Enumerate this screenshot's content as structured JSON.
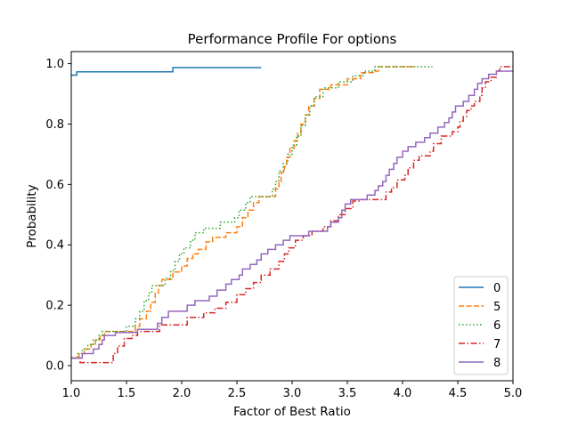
{
  "chart_data": {
    "type": "line",
    "title": "Performance Profile For options",
    "xlabel": "Factor of Best Ratio",
    "ylabel": "Probability",
    "xlim": [
      1.0,
      5.0
    ],
    "ylim": [
      -0.05,
      1.04
    ],
    "x_ticks": [
      "1.0",
      "1.5",
      "2.0",
      "2.5",
      "3.0",
      "3.5",
      "4.0",
      "4.5",
      "5.0"
    ],
    "x_tick_values": [
      1.0,
      1.5,
      2.0,
      2.5,
      3.0,
      3.5,
      4.0,
      4.5,
      5.0
    ],
    "y_ticks": [
      "0.0",
      "0.2",
      "0.4",
      "0.6",
      "0.8",
      "1.0"
    ],
    "y_tick_values": [
      0.0,
      0.2,
      0.4,
      0.6,
      0.8,
      1.0
    ],
    "grid": false,
    "legend_position": "lower-right",
    "step": "post",
    "series": [
      {
        "name": "0",
        "color": "#1f77b4",
        "dash": "solid",
        "points": [
          [
            1.0,
            0.962
          ],
          [
            1.05,
            0.973
          ],
          [
            1.1,
            0.973
          ],
          [
            1.9,
            0.973
          ],
          [
            1.92,
            0.987
          ],
          [
            2.72,
            0.987
          ]
        ]
      },
      {
        "name": "5",
        "color": "#ff7f0e",
        "dash": "dashed",
        "points": [
          [
            1.0,
            0.025
          ],
          [
            1.07,
            0.04
          ],
          [
            1.12,
            0.055
          ],
          [
            1.18,
            0.07
          ],
          [
            1.22,
            0.085
          ],
          [
            1.26,
            0.1
          ],
          [
            1.3,
            0.113
          ],
          [
            1.58,
            0.13
          ],
          [
            1.62,
            0.155
          ],
          [
            1.68,
            0.18
          ],
          [
            1.72,
            0.21
          ],
          [
            1.76,
            0.24
          ],
          [
            1.79,
            0.265
          ],
          [
            1.82,
            0.285
          ],
          [
            1.92,
            0.31
          ],
          [
            2.0,
            0.33
          ],
          [
            2.05,
            0.355
          ],
          [
            2.1,
            0.37
          ],
          [
            2.15,
            0.385
          ],
          [
            2.22,
            0.41
          ],
          [
            2.28,
            0.425
          ],
          [
            2.4,
            0.44
          ],
          [
            2.5,
            0.46
          ],
          [
            2.55,
            0.49
          ],
          [
            2.6,
            0.515
          ],
          [
            2.65,
            0.54
          ],
          [
            2.7,
            0.56
          ],
          [
            2.85,
            0.585
          ],
          [
            2.88,
            0.61
          ],
          [
            2.9,
            0.64
          ],
          [
            2.93,
            0.66
          ],
          [
            2.95,
            0.69
          ],
          [
            2.98,
            0.72
          ],
          [
            3.02,
            0.745
          ],
          [
            3.05,
            0.77
          ],
          [
            3.08,
            0.8
          ],
          [
            3.12,
            0.83
          ],
          [
            3.15,
            0.86
          ],
          [
            3.2,
            0.885
          ],
          [
            3.25,
            0.915
          ],
          [
            3.35,
            0.93
          ],
          [
            3.5,
            0.95
          ],
          [
            3.62,
            0.97
          ],
          [
            3.75,
            0.975
          ],
          [
            3.78,
            0.99
          ],
          [
            4.12,
            0.99
          ]
        ]
      },
      {
        "name": "6",
        "color": "#2ca02c",
        "dash": "dotted",
        "points": [
          [
            1.0,
            0.025
          ],
          [
            1.06,
            0.04
          ],
          [
            1.1,
            0.055
          ],
          [
            1.15,
            0.07
          ],
          [
            1.2,
            0.085
          ],
          [
            1.25,
            0.1
          ],
          [
            1.28,
            0.113
          ],
          [
            1.5,
            0.13
          ],
          [
            1.58,
            0.155
          ],
          [
            1.62,
            0.18
          ],
          [
            1.66,
            0.215
          ],
          [
            1.7,
            0.24
          ],
          [
            1.73,
            0.265
          ],
          [
            1.85,
            0.29
          ],
          [
            1.9,
            0.315
          ],
          [
            1.94,
            0.345
          ],
          [
            1.98,
            0.37
          ],
          [
            2.02,
            0.39
          ],
          [
            2.08,
            0.415
          ],
          [
            2.12,
            0.44
          ],
          [
            2.2,
            0.455
          ],
          [
            2.35,
            0.475
          ],
          [
            2.48,
            0.49
          ],
          [
            2.52,
            0.515
          ],
          [
            2.58,
            0.54
          ],
          [
            2.62,
            0.56
          ],
          [
            2.82,
            0.585
          ],
          [
            2.85,
            0.61
          ],
          [
            2.88,
            0.645
          ],
          [
            2.92,
            0.67
          ],
          [
            2.96,
            0.7
          ],
          [
            3.0,
            0.73
          ],
          [
            3.04,
            0.76
          ],
          [
            3.08,
            0.795
          ],
          [
            3.12,
            0.83
          ],
          [
            3.16,
            0.86
          ],
          [
            3.2,
            0.89
          ],
          [
            3.28,
            0.92
          ],
          [
            3.42,
            0.94
          ],
          [
            3.55,
            0.96
          ],
          [
            3.65,
            0.975
          ],
          [
            3.7,
            0.975
          ],
          [
            3.75,
            0.99
          ],
          [
            4.27,
            0.99
          ]
        ]
      },
      {
        "name": "7",
        "color": "#d62728",
        "dash": "dashdot",
        "points": [
          [
            1.0,
            0.025
          ],
          [
            1.08,
            0.01
          ],
          [
            1.35,
            0.01
          ],
          [
            1.38,
            0.04
          ],
          [
            1.42,
            0.065
          ],
          [
            1.48,
            0.09
          ],
          [
            1.55,
            0.1
          ],
          [
            1.6,
            0.113
          ],
          [
            1.78,
            0.113
          ],
          [
            1.8,
            0.135
          ],
          [
            2.02,
            0.135
          ],
          [
            2.05,
            0.16
          ],
          [
            2.2,
            0.175
          ],
          [
            2.3,
            0.19
          ],
          [
            2.4,
            0.21
          ],
          [
            2.5,
            0.235
          ],
          [
            2.58,
            0.255
          ],
          [
            2.65,
            0.275
          ],
          [
            2.72,
            0.3
          ],
          [
            2.8,
            0.32
          ],
          [
            2.88,
            0.345
          ],
          [
            2.93,
            0.37
          ],
          [
            2.97,
            0.39
          ],
          [
            3.03,
            0.415
          ],
          [
            3.1,
            0.43
          ],
          [
            3.18,
            0.445
          ],
          [
            3.28,
            0.46
          ],
          [
            3.35,
            0.48
          ],
          [
            3.42,
            0.5
          ],
          [
            3.48,
            0.52
          ],
          [
            3.55,
            0.545
          ],
          [
            3.62,
            0.55
          ],
          [
            3.82,
            0.55
          ],
          [
            3.85,
            0.575
          ],
          [
            3.9,
            0.59
          ],
          [
            3.95,
            0.615
          ],
          [
            4.02,
            0.63
          ],
          [
            4.05,
            0.655
          ],
          [
            4.1,
            0.68
          ],
          [
            4.15,
            0.695
          ],
          [
            4.25,
            0.71
          ],
          [
            4.28,
            0.735
          ],
          [
            4.35,
            0.76
          ],
          [
            4.45,
            0.775
          ],
          [
            4.5,
            0.79
          ],
          [
            4.52,
            0.81
          ],
          [
            4.55,
            0.825
          ],
          [
            4.58,
            0.845
          ],
          [
            4.62,
            0.86
          ],
          [
            4.65,
            0.875
          ],
          [
            4.7,
            0.895
          ],
          [
            4.72,
            0.92
          ],
          [
            4.75,
            0.94
          ],
          [
            4.8,
            0.955
          ],
          [
            4.85,
            0.975
          ],
          [
            4.88,
            0.99
          ],
          [
            5.0,
            0.99
          ]
        ]
      },
      {
        "name": "8",
        "color": "#9467bd",
        "dash": "solid",
        "points": [
          [
            1.0,
            0.025
          ],
          [
            1.1,
            0.04
          ],
          [
            1.2,
            0.055
          ],
          [
            1.25,
            0.07
          ],
          [
            1.28,
            0.085
          ],
          [
            1.3,
            0.1
          ],
          [
            1.4,
            0.11
          ],
          [
            1.6,
            0.12
          ],
          [
            1.78,
            0.14
          ],
          [
            1.82,
            0.16
          ],
          [
            1.88,
            0.18
          ],
          [
            2.05,
            0.2
          ],
          [
            2.12,
            0.215
          ],
          [
            2.25,
            0.23
          ],
          [
            2.32,
            0.25
          ],
          [
            2.4,
            0.27
          ],
          [
            2.45,
            0.285
          ],
          [
            2.52,
            0.3
          ],
          [
            2.55,
            0.32
          ],
          [
            2.62,
            0.335
          ],
          [
            2.68,
            0.35
          ],
          [
            2.72,
            0.37
          ],
          [
            2.78,
            0.385
          ],
          [
            2.85,
            0.4
          ],
          [
            2.92,
            0.415
          ],
          [
            2.98,
            0.43
          ],
          [
            3.12,
            0.43
          ],
          [
            3.15,
            0.445
          ],
          [
            3.3,
            0.445
          ],
          [
            3.32,
            0.46
          ],
          [
            3.35,
            0.475
          ],
          [
            3.42,
            0.49
          ],
          [
            3.45,
            0.515
          ],
          [
            3.48,
            0.535
          ],
          [
            3.53,
            0.55
          ],
          [
            3.68,
            0.565
          ],
          [
            3.75,
            0.58
          ],
          [
            3.78,
            0.595
          ],
          [
            3.82,
            0.61
          ],
          [
            3.85,
            0.63
          ],
          [
            3.88,
            0.65
          ],
          [
            3.92,
            0.67
          ],
          [
            3.95,
            0.69
          ],
          [
            4.0,
            0.71
          ],
          [
            4.05,
            0.725
          ],
          [
            4.12,
            0.74
          ],
          [
            4.2,
            0.755
          ],
          [
            4.25,
            0.77
          ],
          [
            4.32,
            0.79
          ],
          [
            4.38,
            0.805
          ],
          [
            4.42,
            0.82
          ],
          [
            4.45,
            0.84
          ],
          [
            4.48,
            0.86
          ],
          [
            4.55,
            0.875
          ],
          [
            4.6,
            0.895
          ],
          [
            4.65,
            0.915
          ],
          [
            4.68,
            0.935
          ],
          [
            4.72,
            0.95
          ],
          [
            4.78,
            0.965
          ],
          [
            4.85,
            0.975
          ],
          [
            5.0,
            0.975
          ]
        ]
      }
    ]
  }
}
